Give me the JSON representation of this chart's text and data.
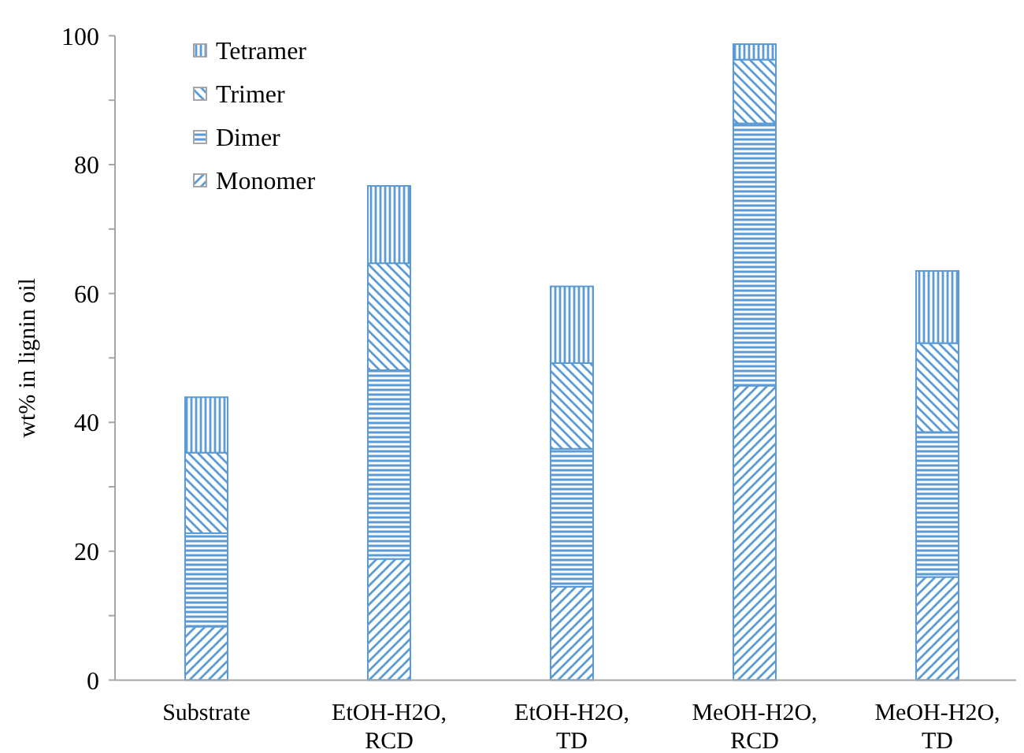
{
  "chart_data": {
    "type": "bar",
    "stacked": true,
    "ylabel": "wt% in lignin oil",
    "categories": [
      "Substrate",
      "EtOH-H2O, RCD",
      "EtOH-H2O, TD",
      "MeOH-H2O, RCD",
      "MeOH-H2O, TD"
    ],
    "series": [
      {
        "name": "Monomer",
        "color": "#5b9bd5",
        "values": [
          8.3,
          18.8,
          14.5,
          45.7,
          16.0
        ]
      },
      {
        "name": "Dimer",
        "color": "#5b9bd5",
        "values": [
          14.5,
          29.3,
          21.4,
          40.7,
          22.5
        ]
      },
      {
        "name": "Trimer",
        "color": "#5b9bd5",
        "values": [
          12.5,
          16.6,
          13.3,
          9.9,
          13.8
        ]
      },
      {
        "name": "Tetramer",
        "color": "#5b9bd5",
        "values": [
          8.6,
          12.0,
          11.9,
          2.4,
          11.2
        ]
      }
    ],
    "ylim": [
      0,
      100
    ],
    "yticks": [
      0,
      {
        "value": 10,
        "label": null
      },
      20,
      {
        "value": 30,
        "label": null
      },
      40,
      {
        "value": 50,
        "label": null
      },
      60,
      {
        "value": 70,
        "label": null
      },
      80,
      {
        "value": 90,
        "label": null
      },
      100
    ],
    "grid": false,
    "legend": "top left"
  }
}
